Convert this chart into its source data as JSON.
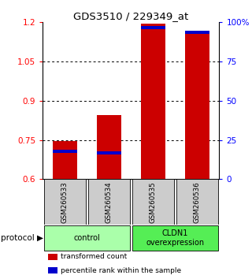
{
  "title": "GDS3510 / 229349_at",
  "samples": [
    "GSM260533",
    "GSM260534",
    "GSM260535",
    "GSM260536"
  ],
  "groups": [
    {
      "label": "control",
      "color": "#aaffaa",
      "start": 0,
      "end": 1
    },
    {
      "label": "CLDN1\noverexpression",
      "color": "#55ee55",
      "start": 2,
      "end": 3
    }
  ],
  "transformed_counts": [
    0.745,
    0.845,
    1.195,
    1.165
  ],
  "percentile_ranks": [
    0.7,
    0.695,
    1.175,
    1.155
  ],
  "ymin": 0.6,
  "ymax": 1.2,
  "y_ticks_left": [
    0.6,
    0.75,
    0.9,
    1.05,
    1.2
  ],
  "ytick_labels_left": [
    "0.6",
    "0.75",
    "0.9",
    "1.05",
    "1.2"
  ],
  "ytick_labels_right": [
    "0",
    "25",
    "50",
    "75",
    "100%"
  ],
  "bar_color": "#cc0000",
  "percentile_color": "#0000cc",
  "bar_width": 0.55,
  "bg_color": "#ffffff",
  "sample_box_color": "#cccccc",
  "legend_items": [
    {
      "color": "#cc0000",
      "label": "transformed count"
    },
    {
      "color": "#0000cc",
      "label": "percentile rank within the sample"
    }
  ]
}
